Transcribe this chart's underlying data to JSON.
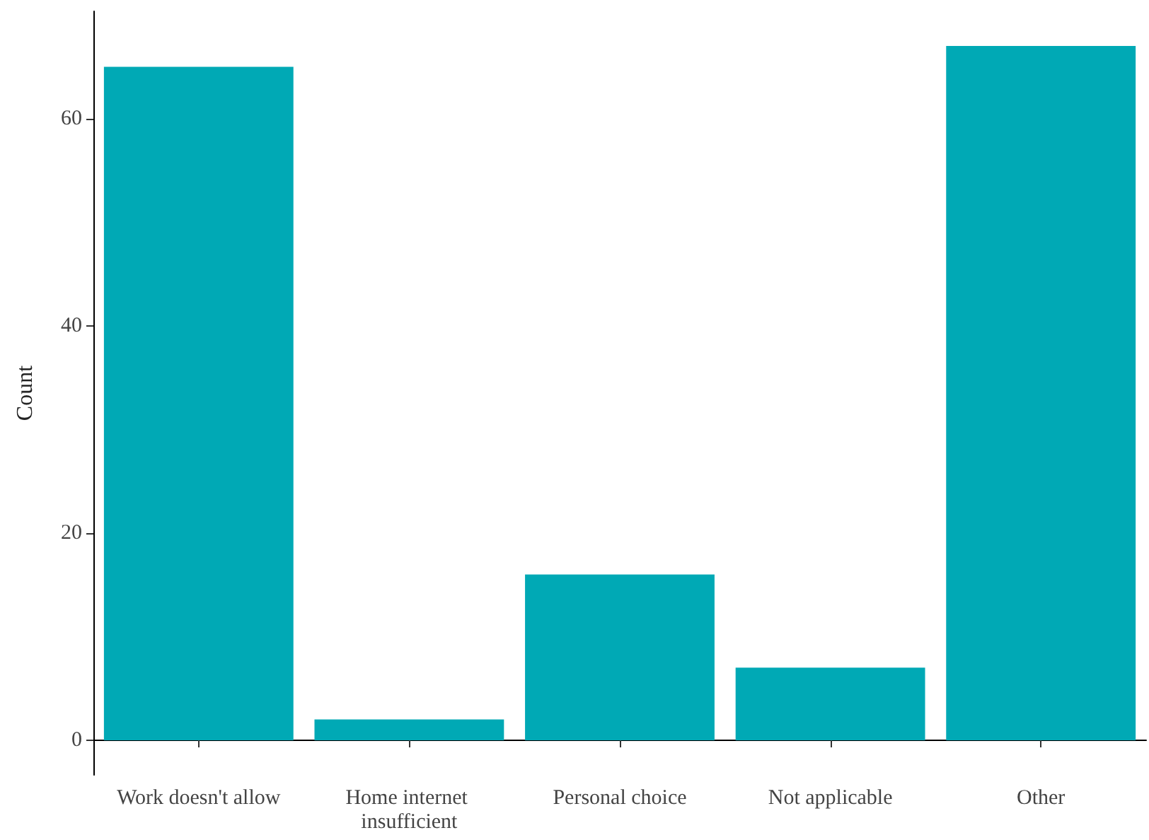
{
  "chart_data": {
    "type": "bar",
    "ylabel": "Count",
    "categories": [
      "Work doesn't allow",
      "Home internet insufficient",
      "Personal choice",
      "Not applicable",
      "Other"
    ],
    "values": [
      65,
      2,
      16,
      7,
      67
    ],
    "color": "#00a9b5",
    "ylim": [
      -3.35,
      70.35
    ],
    "yticks": [
      0,
      20,
      40,
      60
    ],
    "grid": false
  }
}
